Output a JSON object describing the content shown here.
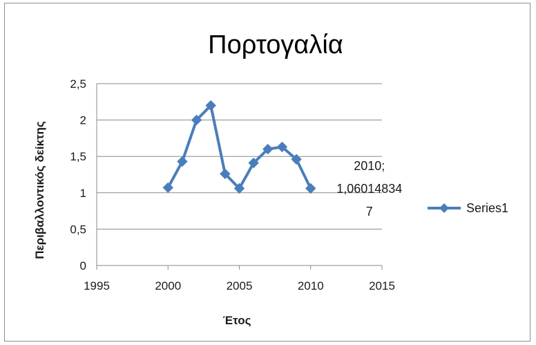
{
  "chart_data": {
    "type": "scatter",
    "title": "Πορτογαλία",
    "xlabel": "Έτος",
    "ylabel": "Περιβαλλοντικός δείκτης",
    "xlim": [
      1995,
      2015
    ],
    "ylim": [
      0,
      2.5
    ],
    "xticks": [
      "1995",
      "2000",
      "2005",
      "2010",
      "2015"
    ],
    "yticks": [
      "0",
      "0,5",
      "1",
      "1,5",
      "2",
      "2,5"
    ],
    "grid": "horizontal",
    "legend_position": "right",
    "series": [
      {
        "name": "Series1",
        "color": "#4a7ebb",
        "marker": "diamond",
        "x": [
          2000,
          2001,
          2002,
          2003,
          2004,
          2005,
          2006,
          2007,
          2008,
          2009,
          2010
        ],
        "y": [
          1.07,
          1.43,
          2.0,
          2.2,
          1.26,
          1.06,
          1.41,
          1.6,
          1.63,
          1.46,
          1.06
        ]
      }
    ],
    "data_label": {
      "point_x": 2010,
      "lines": [
        "2010;",
        "1,06014834",
        "7"
      ]
    }
  }
}
